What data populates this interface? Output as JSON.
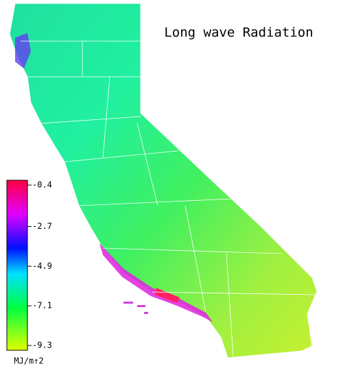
{
  "title": "Long wave Radiation",
  "colorbar": {
    "ticks": [
      -0.4,
      -2.7,
      -4.9,
      -7.1,
      -9.3
    ],
    "unit": "MJ/m↑2"
  }
}
